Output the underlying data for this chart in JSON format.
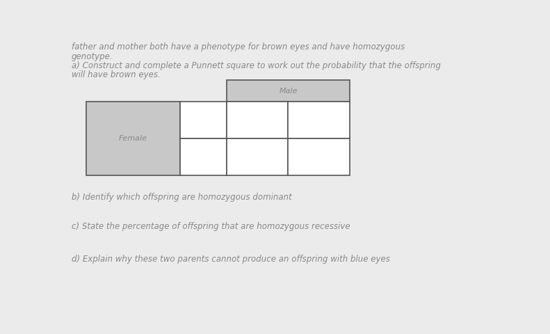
{
  "page_bg": "#ebebeb",
  "text_color": "#888888",
  "line_top1": "father and mother both have a phenotype for brown eyes and have homozygous",
  "line_top2": "genotype.",
  "line_a1": "a) Construct and complete a Punnett square to work out the probability that the offspring",
  "line_a2": "will have brown eyes.",
  "line_b": "b) Identify which offspring are homozygous dominant",
  "line_c": "c) State the percentage of offspring that are homozygous recessive",
  "line_d": "d) Explain why these two parents cannot produce an offspring with blue eyes",
  "male_label": "Male",
  "female_label": "Female",
  "cell_fill": "#ffffff",
  "header_fill": "#c8c8c8",
  "grid_color": "#555555",
  "font_size_text": 8.5,
  "font_size_label": 8.0
}
